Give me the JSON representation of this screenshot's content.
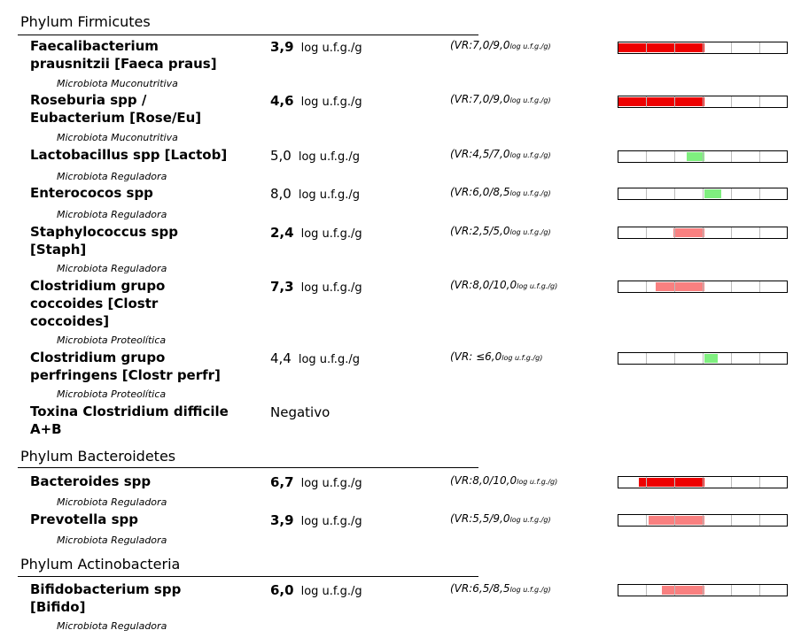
{
  "sections": [
    {
      "title": "Phylum Firmicutes",
      "rows": [
        {
          "name_lines": [
            "Faecalibacterium",
            "prausnitzii [Faeca praus]"
          ],
          "group": "Microbiota Muconutritiva",
          "value": "3,9",
          "unit": "log u.f.g./g",
          "reference": "(VR:7,0/9,0",
          "reference_unit": "log u.f.g./g)",
          "gauge_color": "#ee0000"
        },
        {
          "name_lines": [
            "Roseburia spp /",
            "Eubacterium [Rose/Eu]"
          ],
          "group": "Microbiota Muconutritiva",
          "value": "4,6",
          "unit": "log u.f.g./g",
          "reference": "(VR:7,0/9,0",
          "reference_unit": "log u.f.g./g)",
          "gauge_color": "#ee0000"
        },
        {
          "name_lines": [
            "Lactobacillus spp [Lactob]"
          ],
          "group": "Microbiota Reguladora",
          "value": "5,0",
          "unit": "log u.f.g./g",
          "reference": "(VR:4,5/7,0",
          "reference_unit": "log u.f.g./g)",
          "gauge_color": "#7fef7f"
        },
        {
          "name_lines": [
            "Enterococos spp"
          ],
          "group": "Microbiota Reguladora",
          "value": "8,0",
          "unit": "log u.f.g./g",
          "reference": "(VR:6,0/8,5",
          "reference_unit": "log u.f.g./g)",
          "gauge_color": "#7fef7f"
        },
        {
          "name_lines": [
            "Staphylococcus spp",
            "[Staph]"
          ],
          "group": "Microbiota Reguladora",
          "value": "2,4",
          "unit": "log u.f.g./g",
          "reference": "(VR:2,5/5,0",
          "reference_unit": "log u.f.g./g)",
          "gauge_color": "#f98080"
        },
        {
          "name_lines": [
            "Clostridium grupo",
            "coccoides [Clostr",
            "coccoides]"
          ],
          "group": "Microbiota Proteolítica",
          "value": "7,3",
          "unit": "log u.f.g./g",
          "reference": "(VR:8,0/10,0",
          "reference_unit": "log u.f.g./g)",
          "gauge_color": "#f98080"
        },
        {
          "name_lines": [
            "Clostridium grupo",
            "perfringens [Clostr perfr]"
          ],
          "group": "Microbiota Proteolítica",
          "value": "4,4",
          "unit": "log u.f.g./g",
          "reference": "(VR: ≤6,0",
          "reference_unit": "log u.f.g./g)",
          "gauge_color": "#7fef7f"
        },
        {
          "name_lines": [
            "Toxina Clostridium difficile",
            "A+B"
          ],
          "value": "Negativo"
        }
      ]
    },
    {
      "title": "Phylum Bacteroidetes",
      "rows": [
        {
          "name_lines": [
            "Bacteroides spp"
          ],
          "group": "Microbiota Reguladora",
          "value": "6,7",
          "unit": "log u.f.g./g",
          "reference": "(VR:8,0/10,0",
          "reference_unit": "log u.f.g./g)",
          "gauge_color": "#ee0000"
        },
        {
          "name_lines": [
            "Prevotella spp"
          ],
          "group": "Microbiota Reguladora",
          "value": "3,9",
          "unit": "log u.f.g./g",
          "reference": "(VR:5,5/9,0",
          "reference_unit": "log u.f.g./g)",
          "gauge_color": "#f98080"
        }
      ]
    },
    {
      "title": "Phylum Actinobacteria",
      "rows": [
        {
          "name_lines": [
            "Bifidobacterium spp",
            "[Bifido]"
          ],
          "group": "Microbiota Reguladora",
          "value": "6,0",
          "unit": "log u.f.g./g",
          "reference": "(VR:6,5/8,5",
          "reference_unit": "log u.f.g./g)",
          "gauge_color": "#f98080"
        }
      ]
    }
  ]
}
